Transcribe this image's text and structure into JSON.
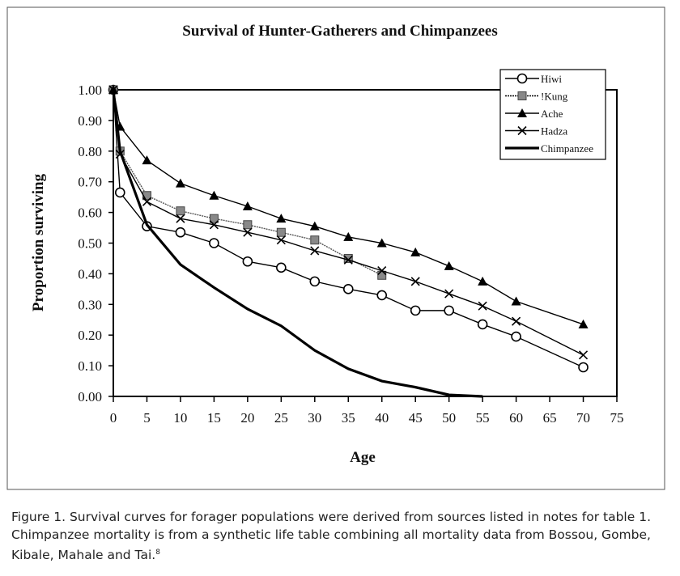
{
  "chart_data": {
    "type": "line",
    "title": "Survival of Hunter-Gatherers and Chimpanzees",
    "xlabel": "Age",
    "ylabel": "Proportion surviving",
    "xlim": [
      0,
      75
    ],
    "ylim": [
      0,
      1
    ],
    "xticks": [
      "0",
      "5",
      "10",
      "15",
      "20",
      "25",
      "30",
      "35",
      "40",
      "45",
      "50",
      "55",
      "60",
      "65",
      "70",
      "75"
    ],
    "yticks": [
      "0.00",
      "0.10",
      "0.20",
      "0.30",
      "0.40",
      "0.50",
      "0.60",
      "0.70",
      "0.80",
      "0.90",
      "1.00"
    ],
    "grid": false,
    "legend_position": "top-right",
    "series": [
      {
        "name": "Hiwi",
        "marker": "circle",
        "x": [
          0,
          1,
          5,
          10,
          15,
          20,
          25,
          30,
          35,
          40,
          45,
          50,
          55,
          60,
          70
        ],
        "y": [
          1.0,
          0.665,
          0.555,
          0.535,
          0.5,
          0.44,
          0.42,
          0.375,
          0.35,
          0.33,
          0.28,
          0.28,
          0.235,
          0.195,
          0.095
        ]
      },
      {
        "name": "!Kung",
        "marker": "square",
        "x": [
          0,
          1,
          5,
          10,
          15,
          20,
          25,
          30,
          35,
          40
        ],
        "y": [
          1.0,
          0.8,
          0.655,
          0.605,
          0.58,
          0.56,
          0.535,
          0.51,
          0.45,
          0.395
        ]
      },
      {
        "name": "Ache",
        "marker": "triangle",
        "x": [
          0,
          1,
          5,
          10,
          15,
          20,
          25,
          30,
          35,
          40,
          45,
          50,
          55,
          60,
          70
        ],
        "y": [
          1.0,
          0.88,
          0.77,
          0.695,
          0.655,
          0.62,
          0.58,
          0.555,
          0.52,
          0.5,
          0.47,
          0.425,
          0.375,
          0.31,
          0.235
        ]
      },
      {
        "name": "Hadza",
        "marker": "x",
        "x": [
          0,
          1,
          5,
          10,
          15,
          20,
          25,
          30,
          35,
          40,
          45,
          50,
          55,
          60,
          70
        ],
        "y": [
          1.0,
          0.79,
          0.635,
          0.58,
          0.56,
          0.535,
          0.51,
          0.475,
          0.445,
          0.41,
          0.375,
          0.335,
          0.295,
          0.245,
          0.135
        ]
      },
      {
        "name": "Chimpanzee",
        "marker": "none",
        "x": [
          0,
          1,
          5,
          10,
          15,
          20,
          25,
          30,
          35,
          40,
          45,
          50,
          55
        ],
        "y": [
          1.0,
          0.8,
          0.56,
          0.43,
          0.355,
          0.285,
          0.23,
          0.15,
          0.09,
          0.05,
          0.03,
          0.005,
          0.0
        ]
      }
    ]
  },
  "caption": "Figure 1. Survival curves for forager populations were derived from sources listed in notes for table 1. Chimpanzee mortality is from a synthetic life table combining all mortality data from Bossou, Gombe, Kibale, Mahale and Tai.",
  "caption_note": "8"
}
